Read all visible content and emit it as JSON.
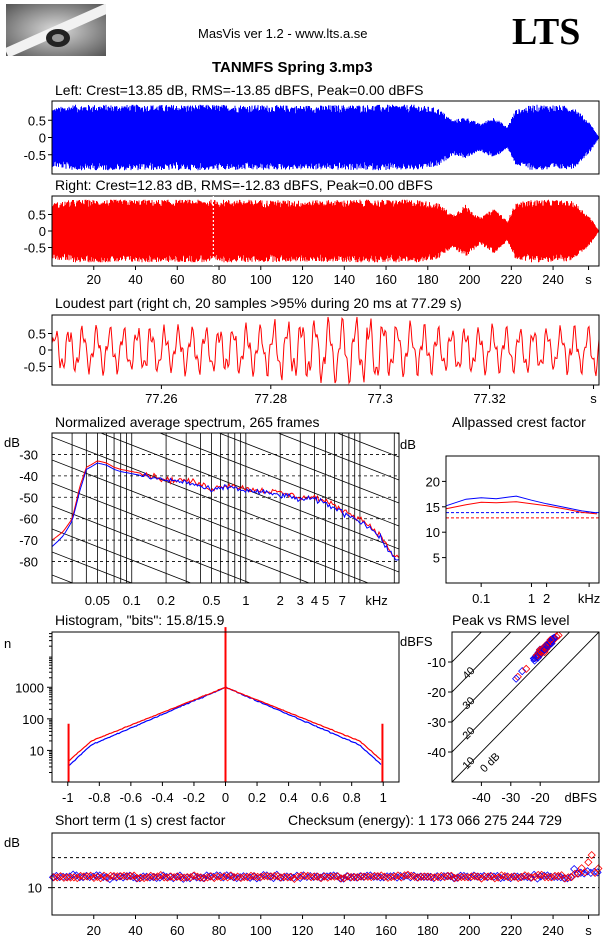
{
  "header": {
    "app_title": "MasVis ver 1.2 - www.lts.a.se",
    "brand": "LTS",
    "file_title": "TANMFS Spring 3.mp3"
  },
  "colors": {
    "left": "#0000ff",
    "right": "#ff0000",
    "axis": "#000000",
    "grid": "#000000"
  },
  "chart_data": [
    {
      "type": "area",
      "id": "left",
      "title": "Left: Crest=13.85 dB, RMS=-13.85 dBFS, Peak=0.00 dBFS",
      "series": [
        {
          "name": "Left",
          "color": "#0000ff"
        }
      ],
      "xlim": [
        0,
        262
      ],
      "ylim": [
        -1,
        1
      ],
      "yticks": [
        "0.5",
        "0",
        "-0.5"
      ],
      "envelope_x": [
        0,
        10,
        30,
        60,
        90,
        120,
        150,
        175,
        185,
        192,
        198,
        205,
        212,
        218,
        222,
        230,
        240,
        250,
        258,
        262
      ],
      "envelope_y": [
        0.85,
        0.95,
        0.95,
        0.95,
        0.95,
        0.93,
        0.95,
        0.95,
        0.85,
        0.5,
        0.6,
        0.4,
        0.6,
        0.3,
        0.8,
        0.95,
        0.95,
        0.9,
        0.4,
        0
      ]
    },
    {
      "type": "area",
      "id": "right",
      "title": "Right: Crest=12.83 dB, RMS=-12.83 dBFS, Peak=0.00 dBFS",
      "series": [
        {
          "name": "Right",
          "color": "#ff0000"
        }
      ],
      "xlim": [
        0,
        262
      ],
      "ylim": [
        -1,
        1
      ],
      "xticks": [
        "20",
        "40",
        "60",
        "80",
        "100",
        "120",
        "140",
        "160",
        "180",
        "200",
        "220",
        "240",
        "s"
      ],
      "yticks": [
        "0.5",
        "0",
        "-0.5"
      ],
      "marker_x": 77.29,
      "envelope_x": [
        0,
        10,
        30,
        60,
        90,
        120,
        150,
        175,
        185,
        192,
        198,
        205,
        212,
        218,
        222,
        230,
        240,
        250,
        258,
        262
      ],
      "envelope_y": [
        0.85,
        0.95,
        0.95,
        0.95,
        0.95,
        0.93,
        0.95,
        0.95,
        0.85,
        0.5,
        0.8,
        0.4,
        0.7,
        0.3,
        0.85,
        0.95,
        0.95,
        0.9,
        0.4,
        0
      ]
    },
    {
      "type": "line",
      "id": "loudest",
      "title": "Loudest part (right ch, 20 samples >95% during 20 ms at 77.29 s)",
      "xlim": [
        77.24,
        77.34
      ],
      "ylim": [
        -1,
        1
      ],
      "xticks": [
        "77.26",
        "77.28",
        "77.3",
        "77.32",
        "s"
      ],
      "yticks": [
        "0.5",
        "0",
        "-0.5"
      ]
    },
    {
      "type": "line",
      "id": "spectrum",
      "title": "Normalized average spectrum, 265 frames",
      "ylabel": "dB",
      "yticks": [
        "-30",
        "-40",
        "-50",
        "-60",
        "-70",
        "-80"
      ],
      "xticks": [
        "0.05",
        "0.1",
        "0.2",
        "0.5",
        "1",
        "2",
        "3",
        "4",
        "5",
        "7",
        "kHz"
      ],
      "xlim_khz": [
        0.02,
        22
      ],
      "ylim": [
        -90,
        -20
      ],
      "x_khz": [
        0.02,
        0.025,
        0.03,
        0.035,
        0.04,
        0.05,
        0.06,
        0.07,
        0.08,
        0.1,
        0.15,
        0.2,
        0.3,
        0.4,
        0.5,
        0.7,
        1.0,
        1.5,
        2.0,
        3.0,
        4.0,
        5.0,
        7.0,
        10.0,
        14.0,
        18.0,
        20.0
      ],
      "series": [
        {
          "name": "Right",
          "color": "#ff0000",
          "values": [
            -70,
            -66,
            -60,
            -45,
            -36,
            -33,
            -34,
            -36,
            -37,
            -38,
            -40,
            -42,
            -42,
            -44,
            -46,
            -44,
            -46,
            -47,
            -48,
            -50,
            -50,
            -52,
            -56,
            -60,
            -66,
            -74,
            -78
          ]
        },
        {
          "name": "Left",
          "color": "#0000ff",
          "values": [
            -73,
            -68,
            -61,
            -47,
            -37,
            -34,
            -35,
            -37,
            -38,
            -39,
            -41,
            -42,
            -43,
            -45,
            -47,
            -45,
            -47,
            -48,
            -49,
            -51,
            -51,
            -53,
            -57,
            -61,
            -67,
            -75,
            -79
          ]
        }
      ]
    },
    {
      "type": "line",
      "id": "allpassed",
      "title": "Allpassed crest factor",
      "ylabel": "dB",
      "yticks": [
        "20",
        "15",
        "10",
        "5"
      ],
      "xticks": [
        "0.1",
        "1",
        "2",
        "kHz"
      ],
      "xlim_khz": [
        0.02,
        22
      ],
      "ylim": [
        0,
        25
      ],
      "x_khz": [
        0.02,
        0.05,
        0.1,
        0.2,
        0.5,
        1,
        2,
        5,
        10,
        20
      ],
      "series": [
        {
          "name": "Left",
          "color": "#0000ff",
          "values": [
            15.2,
            16.5,
            16.8,
            16.6,
            17.1,
            16.3,
            15.6,
            14.8,
            14.2,
            13.8
          ]
        },
        {
          "name": "Right",
          "color": "#ff0000",
          "values": [
            14.6,
            15.4,
            15.9,
            15.8,
            16.0,
            15.6,
            15.2,
            14.5,
            13.9,
            13.6
          ]
        }
      ],
      "hlines": [
        {
          "y": 13.85,
          "color": "#0000ff"
        },
        {
          "y": 12.83,
          "color": "#ff0000"
        }
      ]
    },
    {
      "type": "line",
      "id": "histogram",
      "title": "Histogram, \"bits\": 15.8/15.9",
      "ylabel": "n",
      "yticks": [
        "1000",
        "100",
        "10"
      ],
      "xticks": [
        "-1",
        "-0.8",
        "-0.6",
        "-0.4",
        "-0.2",
        "0",
        "0.2",
        "0.4",
        "0.6",
        "0.8",
        "1"
      ],
      "xlim": [
        -1.1,
        1.1
      ],
      "ylim_log": [
        1,
        100000
      ]
    },
    {
      "type": "scatter",
      "id": "peakrms",
      "title": "Peak vs RMS level",
      "ylabel": "dBFS",
      "xlabel": "dBFS",
      "yticks": [
        "-10",
        "-20",
        "-30",
        "-40"
      ],
      "xticks": [
        "-40",
        "-30",
        "-20"
      ],
      "diag_labels": [
        "40",
        "30",
        "20",
        "10",
        "0 dB"
      ],
      "xlim": [
        -50,
        0
      ],
      "ylim": [
        -50,
        0
      ]
    },
    {
      "type": "scatter",
      "id": "shortterm",
      "title": "Short term (1 s) crest factor",
      "checksum": "Checksum (energy):  1 173 066 275 244 729",
      "ylabel": "dB",
      "yticks": [
        "10"
      ],
      "xticks": [
        "20",
        "40",
        "60",
        "80",
        "100",
        "120",
        "140",
        "160",
        "180",
        "200",
        "220",
        "240",
        "s"
      ],
      "xlim": [
        0,
        262
      ],
      "ylim": [
        5,
        20
      ]
    }
  ]
}
